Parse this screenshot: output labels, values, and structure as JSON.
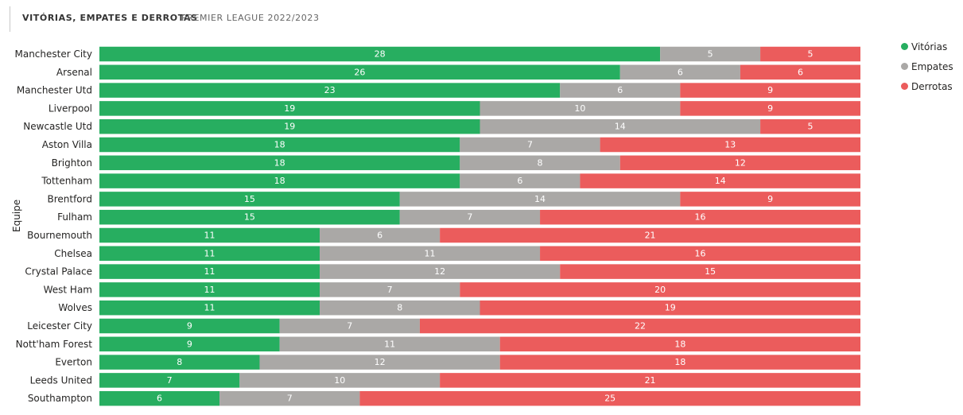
{
  "header": {
    "title": "VITÓRIAS, EMPATES E DERROTAS",
    "subtitle": "PREMIER LEAGUE 2022/2023"
  },
  "colors": {
    "wins": "#27AE60",
    "draws": "#AAA8A6",
    "losses": "#EB5C5C"
  },
  "legend": {
    "items": [
      {
        "label": "Vitórias",
        "color": "#27AE60"
      },
      {
        "label": "Empates",
        "color": "#AAA8A6"
      },
      {
        "label": "Derrotas",
        "color": "#EB5C5C"
      }
    ]
  },
  "chart_data": {
    "type": "bar",
    "orientation": "horizontal",
    "stacked": true,
    "title": "",
    "xlabel": "",
    "ylabel": "Equipe",
    "xlim": [
      0,
      38
    ],
    "legend_position": "right",
    "categories": [
      "Manchester City",
      "Arsenal",
      "Manchester Utd",
      "Liverpool",
      "Newcastle Utd",
      "Aston Villa",
      "Brighton",
      "Tottenham",
      "Brentford",
      "Fulham",
      "Bournemouth",
      "Chelsea",
      "Crystal Palace",
      "West Ham",
      "Wolves",
      "Leicester City",
      "Nott'ham Forest",
      "Everton",
      "Leeds United",
      "Southampton"
    ],
    "series": [
      {
        "name": "Vitórias",
        "color": "#27AE60",
        "values": [
          28,
          26,
          23,
          19,
          19,
          18,
          18,
          18,
          15,
          15,
          11,
          11,
          11,
          11,
          11,
          9,
          9,
          8,
          7,
          6
        ]
      },
      {
        "name": "Empates",
        "color": "#AAA8A6",
        "values": [
          5,
          6,
          6,
          10,
          14,
          7,
          8,
          6,
          14,
          7,
          6,
          11,
          12,
          7,
          8,
          7,
          11,
          12,
          10,
          7
        ]
      },
      {
        "name": "Derrotas",
        "color": "#EB5C5C",
        "values": [
          5,
          6,
          9,
          9,
          5,
          13,
          12,
          14,
          9,
          16,
          21,
          16,
          15,
          20,
          19,
          22,
          18,
          18,
          21,
          25
        ]
      }
    ]
  }
}
